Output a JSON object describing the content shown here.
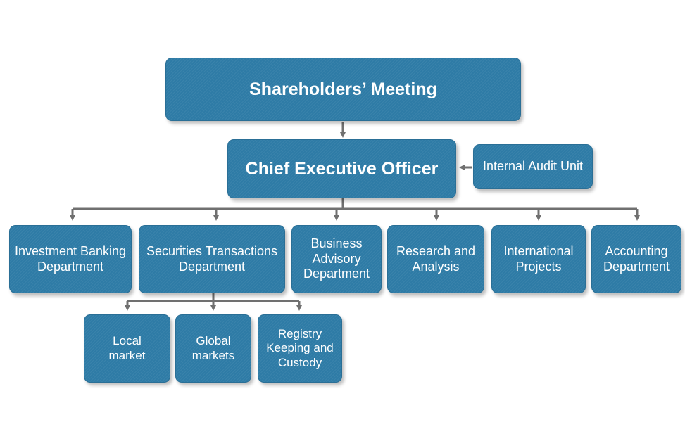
{
  "org_chart": {
    "shareholders": "Shareholders’ Meeting",
    "ceo": "Chief Executive Officer",
    "internal_audit": "Internal Audit Unit",
    "departments": {
      "investment_banking": "Investment Banking Department",
      "securities": "Securities Transactions Department",
      "business_advisory": "Business Advisory Department",
      "research": "Research and Analysis",
      "international": "International Projects",
      "accounting": "Accounting Department"
    },
    "securities_units": {
      "local": "Local market",
      "global": "Global markets",
      "registry": "Registry Keeping and Custody"
    }
  },
  "colors": {
    "box_fill": "#2e7ba6",
    "box_text": "#ffffff",
    "connector": "#707070"
  }
}
